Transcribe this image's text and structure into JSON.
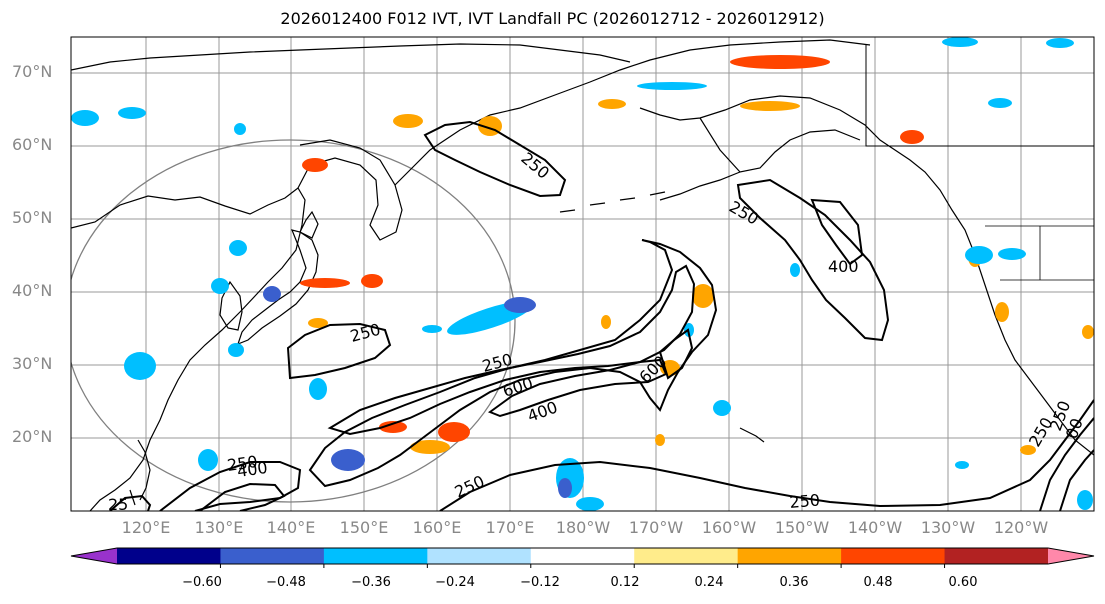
{
  "title": "2026012400 F012 IVT, IVT Landfall PC (2026012712 - 2026012912)",
  "lat_labels": [
    "70°N",
    "60°N",
    "50°N",
    "40°N",
    "30°N",
    "20°N"
  ],
  "lon_labels": [
    "120°E",
    "130°E",
    "140°E",
    "150°E",
    "160°E",
    "170°E",
    "180°W",
    "170°W",
    "160°W",
    "150°W",
    "140°W",
    "130°W",
    "120°W"
  ],
  "contour_labels": [
    "250",
    "250",
    "250",
    "400",
    "250",
    "250",
    "600",
    "400",
    "600",
    "250",
    "400",
    "250",
    "250",
    "25",
    "250",
    "00"
  ],
  "colorbar": {
    "colors": [
      "#9932cc",
      "#00008b",
      "#3a5fcd",
      "#00bfff",
      "#b0e2ff",
      "#ffffff",
      "#ffec8b",
      "#ffa500",
      "#ff4500",
      "#b22222",
      "#ff88aa"
    ],
    "ticks": [
      "−0.60",
      "−0.48",
      "−0.36",
      "−0.24",
      "−0.12",
      "0.12",
      "0.24",
      "0.36",
      "0.48",
      "0.60"
    ]
  },
  "legend_colors": {
    "grid": "#999999",
    "circle": "#808080",
    "contour": "#000000"
  }
}
